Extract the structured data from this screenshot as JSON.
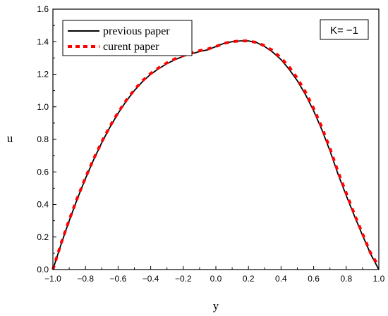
{
  "chart_data": {
    "type": "line",
    "title": "",
    "xlabel": "y",
    "ylabel": "u",
    "xlim": [
      -1.0,
      1.0
    ],
    "ylim": [
      0.0,
      1.6
    ],
    "xticks": [
      "-1.0",
      "-0.8",
      "-0.6",
      "-0.4",
      "-0.2",
      "0.0",
      "0.2",
      "0.4",
      "0.6",
      "0.8",
      "1.0"
    ],
    "yticks": [
      "0.0",
      "0.2",
      "0.4",
      "0.6",
      "0.8",
      "1.0",
      "1.2",
      "1.4",
      "1.6"
    ],
    "grid": false,
    "legend_position": "top-left",
    "annotation": "K= −1",
    "series": [
      {
        "name": "previous paper",
        "style": "solid",
        "color": "#000000",
        "x": [
          -1.0,
          -0.95,
          -0.9,
          -0.85,
          -0.8,
          -0.75,
          -0.7,
          -0.65,
          -0.6,
          -0.55,
          -0.5,
          -0.45,
          -0.4,
          -0.35,
          -0.3,
          -0.25,
          -0.2,
          -0.15,
          -0.1,
          -0.05,
          0.0,
          0.05,
          0.1,
          0.15,
          0.2,
          0.25,
          0.3,
          0.35,
          0.4,
          0.45,
          0.5,
          0.55,
          0.6,
          0.65,
          0.7,
          0.75,
          0.8,
          0.85,
          0.9,
          0.95,
          1.0
        ],
        "y": [
          0.0,
          0.155,
          0.3,
          0.435,
          0.56,
          0.675,
          0.78,
          0.875,
          0.96,
          1.035,
          1.1,
          1.155,
          1.2,
          1.235,
          1.265,
          1.29,
          1.31,
          1.325,
          1.34,
          1.35,
          1.37,
          1.39,
          1.4,
          1.405,
          1.405,
          1.395,
          1.37,
          1.335,
          1.29,
          1.23,
          1.16,
          1.075,
          0.975,
          0.86,
          0.73,
          0.585,
          0.455,
          0.33,
          0.21,
          0.095,
          0.0
        ]
      },
      {
        "name": "curent paper",
        "style": "dashed",
        "color": "#ff0000",
        "x": [
          -1.0,
          -0.95,
          -0.9,
          -0.85,
          -0.8,
          -0.75,
          -0.7,
          -0.65,
          -0.6,
          -0.55,
          -0.5,
          -0.45,
          -0.4,
          -0.35,
          -0.3,
          -0.25,
          -0.2,
          -0.15,
          -0.1,
          -0.05,
          0.0,
          0.05,
          0.1,
          0.15,
          0.2,
          0.25,
          0.3,
          0.35,
          0.4,
          0.45,
          0.5,
          0.55,
          0.6,
          0.65,
          0.7,
          0.75,
          0.8,
          0.85,
          0.9,
          0.95,
          1.0
        ],
        "y": [
          0.0,
          0.16,
          0.305,
          0.44,
          0.565,
          0.68,
          0.785,
          0.88,
          0.965,
          1.04,
          1.105,
          1.16,
          1.205,
          1.24,
          1.27,
          1.295,
          1.315,
          1.33,
          1.345,
          1.355,
          1.37,
          1.39,
          1.4,
          1.405,
          1.405,
          1.395,
          1.375,
          1.345,
          1.3,
          1.245,
          1.175,
          1.09,
          0.99,
          0.875,
          0.745,
          0.6,
          0.47,
          0.34,
          0.22,
          0.1,
          0.02
        ]
      }
    ]
  }
}
